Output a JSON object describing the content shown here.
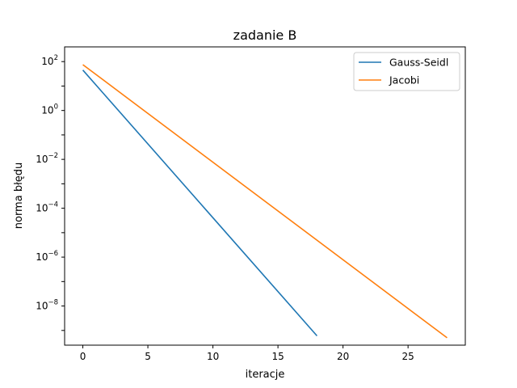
{
  "chart_data": {
    "type": "line",
    "title": "zadanie B",
    "xlabel": "iteracje",
    "ylabel": "norma błędu",
    "yscale": "log",
    "xlim": [
      -1.4,
      29.4
    ],
    "ylim": [
      2.5e-10,
      400.0
    ],
    "xticks": [
      0,
      5,
      10,
      15,
      20,
      25
    ],
    "yticks": [
      {
        "base": "10",
        "exp": "2",
        "value": 100
      },
      {
        "base": "10",
        "exp": "0",
        "value": 1
      },
      {
        "base": "10",
        "exp": "−2",
        "value": 0.01
      },
      {
        "base": "10",
        "exp": "−4",
        "value": 0.0001
      },
      {
        "base": "10",
        "exp": "−6",
        "value": 1e-06
      },
      {
        "base": "10",
        "exp": "−8",
        "value": 1e-08
      }
    ],
    "grid": false,
    "legend_position": "top-right",
    "series": [
      {
        "name": "Gauss-Seidl",
        "color": "#1f77b4",
        "x": [
          0,
          18
        ],
        "y": [
          45,
          6e-10
        ]
      },
      {
        "name": "Jacobi",
        "color": "#ff7f0e",
        "x": [
          0,
          28
        ],
        "y": [
          75,
          5e-10
        ]
      }
    ]
  }
}
